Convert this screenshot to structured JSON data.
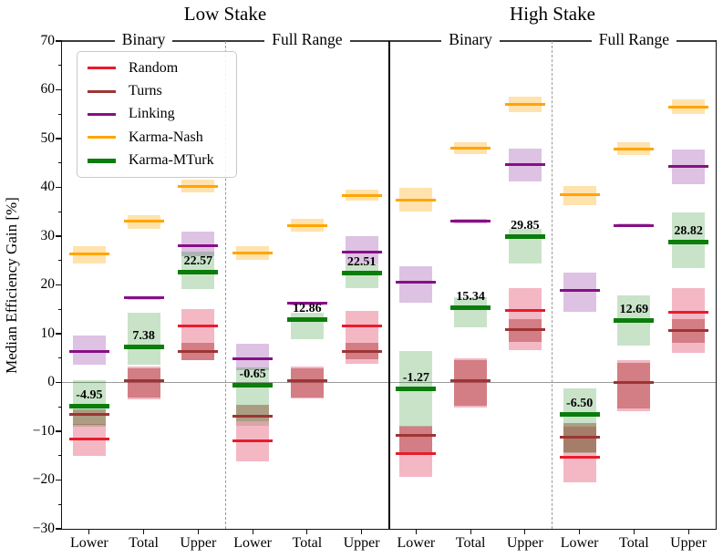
{
  "chart_data": {
    "type": "scatter",
    "style": "median-lines-with-confidence-bands",
    "stake_titles": [
      "Low Stake",
      "High Stake"
    ],
    "ylabel": "Median Efficiency Gain [%]",
    "ylim": [
      -30,
      70
    ],
    "yticks": [
      {
        "v": 70,
        "label": "70"
      },
      {
        "v": 60,
        "label": "60"
      },
      {
        "v": 50,
        "label": "50"
      },
      {
        "v": 40,
        "label": "40"
      },
      {
        "v": 30,
        "label": "30"
      },
      {
        "v": 20,
        "label": "20"
      },
      {
        "v": 10,
        "label": "10"
      },
      {
        "v": 0,
        "label": "0"
      },
      {
        "v": -10,
        "label": "−10"
      },
      {
        "v": -20,
        "label": "−20"
      },
      {
        "v": -30,
        "label": "−30"
      }
    ],
    "categories": [
      "Lower",
      "Total",
      "Upper"
    ],
    "legend_position": "upper left",
    "zero_line": true,
    "series": [
      {
        "name": "Random",
        "color": "#e81c2c",
        "band": "rgba(220,20,60,0.30)",
        "lw": 3
      },
      {
        "name": "Turns",
        "color": "#9e3434",
        "band": "rgba(165,42,42,0.42)",
        "lw": 3
      },
      {
        "name": "Linking",
        "color": "#870f87",
        "band": "rgba(130,30,150,0.27)",
        "lw": 3
      },
      {
        "name": "Karma-Nash",
        "color": "#ffa500",
        "band": "rgba(255,165,0,0.32)",
        "lw": 3
      },
      {
        "name": "Karma-MTurk",
        "color": "#0a7d0a",
        "band": "rgba(11,129,11,0.22)",
        "lw": 5
      }
    ],
    "groups": [
      {
        "stake": "Low Stake",
        "section": "Binary",
        "columns": [
          {
            "label": "Lower",
            "annotation": "-4.95",
            "values": [
              {
                "median": -11.6,
                "band": [
                  -15.1,
                  -8.5
                ]
              },
              {
                "median": -6.6,
                "band": [
                  -8.6,
                  -5.5
                ]
              },
              {
                "median": 6.3,
                "band": [
                  3.7,
                  9.7
                ]
              },
              {
                "median": 26.3,
                "band": [
                  24.4,
                  27.9
                ]
              },
              {
                "median": -4.95,
                "band": [
                  -9.1,
                  0.4
                ]
              }
            ]
          },
          {
            "label": "Total",
            "annotation": "7.38",
            "values": [
              {
                "median": 0.3,
                "band": [
                  -3.4,
                  3.2
                ]
              },
              {
                "median": 0.3,
                "band": [
                  -3.0,
                  2.9
                ]
              },
              {
                "median": 17.3,
                "band": [
                  16.9,
                  17.7
                ]
              },
              {
                "median": 33.1,
                "band": [
                  31.5,
                  34.3
                ]
              },
              {
                "median": 7.38,
                "band": [
                  3.7,
                  14.3
                ]
              }
            ]
          },
          {
            "label": "Upper",
            "annotation": "22.57",
            "values": [
              {
                "median": 11.5,
                "band": [
                  4.5,
                  15.1
                ]
              },
              {
                "median": 6.3,
                "band": [
                  4.5,
                  8.2
                ]
              },
              {
                "median": 28.1,
                "band": [
                  25.9,
                  31.0
                ]
              },
              {
                "median": 40.2,
                "band": [
                  39.0,
                  41.5
                ]
              },
              {
                "median": 22.57,
                "band": [
                  19.2,
                  26.8
                ]
              }
            ]
          }
        ]
      },
      {
        "stake": "Low Stake",
        "section": "Full Range",
        "columns": [
          {
            "label": "Lower",
            "annotation": "-0.65",
            "values": [
              {
                "median": -12.0,
                "band": [
                  -16.1,
                  -8.8
                ]
              },
              {
                "median": -6.9,
                "band": [
                  -8.8,
                  -4.5
                ]
              },
              {
                "median": 4.9,
                "band": [
                  2.6,
                  8.0
                ]
              },
              {
                "median": 26.6,
                "band": [
                  25.2,
                  28.0
                ]
              },
              {
                "median": -0.65,
                "band": [
                  -8.0,
                  3.1
                ]
              }
            ]
          },
          {
            "label": "Total",
            "annotation": "12.86",
            "values": [
              {
                "median": 0.3,
                "band": [
                  -3.3,
                  3.2
                ]
              },
              {
                "median": 0.3,
                "band": [
                  -3.0,
                  2.9
                ]
              },
              {
                "median": 16.2,
                "band": [
                  15.8,
                  16.6
                ]
              },
              {
                "median": 32.2,
                "band": [
                  31.0,
                  33.5
                ]
              },
              {
                "median": 12.86,
                "band": [
                  8.9,
                  14.3
                ]
              }
            ]
          },
          {
            "label": "Upper",
            "annotation": "22.51",
            "values": [
              {
                "median": 11.5,
                "band": [
                  3.9,
                  14.7
                ]
              },
              {
                "median": 6.3,
                "band": [
                  4.7,
                  8.1
                ]
              },
              {
                "median": 26.8,
                "band": [
                  24.4,
                  30.0
                ]
              },
              {
                "median": 38.4,
                "band": [
                  37.3,
                  39.6
                ]
              },
              {
                "median": 22.51,
                "band": [
                  19.4,
                  24.4
                ]
              }
            ]
          }
        ]
      },
      {
        "stake": "High Stake",
        "section": "Binary",
        "columns": [
          {
            "label": "Lower",
            "annotation": "-1.27",
            "values": [
              {
                "median": -14.5,
                "band": [
                  -19.4,
                  -8.9
                ]
              },
              {
                "median": -10.8,
                "band": [
                  -14.3,
                  -9.1
                ]
              },
              {
                "median": 20.5,
                "band": [
                  16.4,
                  23.8
                ]
              },
              {
                "median": 37.4,
                "band": [
                  35.0,
                  39.9
                ]
              },
              {
                "median": -1.27,
                "band": [
                  -9.0,
                  6.5
                ]
              }
            ]
          },
          {
            "label": "Total",
            "annotation": "15.34",
            "values": [
              {
                "median": 0.3,
                "band": [
                  -5.2,
                  4.9
                ]
              },
              {
                "median": 0.3,
                "band": [
                  -4.8,
                  4.5
                ]
              },
              {
                "median": 33.1,
                "band": [
                  32.7,
                  33.5
                ]
              },
              {
                "median": 48.0,
                "band": [
                  46.8,
                  49.3
                ]
              },
              {
                "median": 15.34,
                "band": [
                  11.4,
                  17.5
                ]
              }
            ]
          },
          {
            "label": "Upper",
            "annotation": "29.85",
            "values": [
              {
                "median": 14.7,
                "band": [
                  6.7,
                  19.4
                ]
              },
              {
                "median": 10.8,
                "band": [
                  8.4,
                  13.0
                ]
              },
              {
                "median": 44.7,
                "band": [
                  41.2,
                  47.9
                ]
              },
              {
                "median": 57.0,
                "band": [
                  55.5,
                  58.6
                ]
              },
              {
                "median": 29.85,
                "band": [
                  24.4,
                  31.5
                ]
              }
            ]
          }
        ]
      },
      {
        "stake": "High Stake",
        "section": "Full Range",
        "columns": [
          {
            "label": "Lower",
            "annotation": "-6.50",
            "values": [
              {
                "median": -15.3,
                "band": [
                  -20.4,
                  -9.0
                ]
              },
              {
                "median": -11.2,
                "band": [
                  -14.3,
                  -8.4
                ]
              },
              {
                "median": 18.8,
                "band": [
                  14.5,
                  22.5
                ]
              },
              {
                "median": 38.5,
                "band": [
                  36.3,
                  40.2
                ]
              },
              {
                "median": -6.5,
                "band": [
                  -14.5,
                  -1.3
                ]
              }
            ]
          },
          {
            "label": "Total",
            "annotation": "12.69",
            "values": [
              {
                "median": 0.0,
                "band": [
                  -5.8,
                  4.5
                ]
              },
              {
                "median": 0.0,
                "band": [
                  -5.4,
                  4.1
                ]
              },
              {
                "median": 32.2,
                "band": [
                  31.8,
                  32.6
                ]
              },
              {
                "median": 47.9,
                "band": [
                  46.6,
                  49.2
                ]
              },
              {
                "median": 12.69,
                "band": [
                  7.5,
                  17.9
                ]
              }
            ]
          },
          {
            "label": "Upper",
            "annotation": "28.82",
            "values": [
              {
                "median": 14.3,
                "band": [
                  6.0,
                  19.4
                ]
              },
              {
                "median": 10.6,
                "band": [
                  8.2,
                  12.9
                ]
              },
              {
                "median": 44.3,
                "band": [
                  40.6,
                  47.7
                ]
              },
              {
                "median": 56.4,
                "band": [
                  55.0,
                  58.0
                ]
              },
              {
                "median": 28.82,
                "band": [
                  23.5,
                  34.8
                ]
              }
            ]
          }
        ]
      }
    ]
  }
}
